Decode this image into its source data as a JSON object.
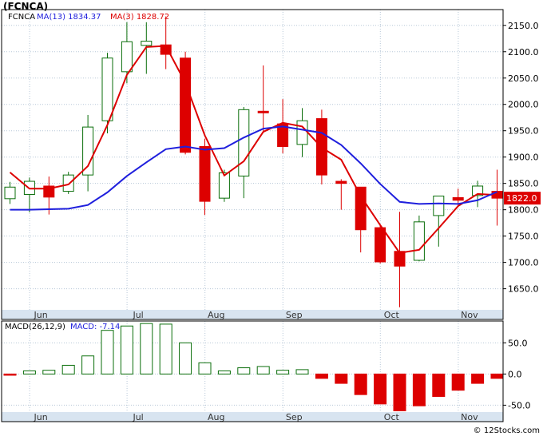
{
  "title": "(FCNCA)",
  "credit": "© 12Stocks.com",
  "colors": {
    "up": "#0a6e0a",
    "down": "#dd0000",
    "ma13": "#1f1fdd",
    "ma3": "#dd0000",
    "axis_band": "#d8e4f0",
    "grid": "#b8c8d8",
    "price_label_bg": "#dd0000"
  },
  "chart_data": [
    {
      "type": "candlestick",
      "legend": [
        {
          "label": "FCNCA",
          "color": "#000000"
        },
        {
          "label": "MA(13)",
          "value": "1834.37",
          "color": "#1f1fdd"
        },
        {
          "label": "MA(3)",
          "value": "1828.72",
          "color": "#dd0000"
        }
      ],
      "x_tick_labels": [
        "Jun",
        "Jul",
        "Aug",
        "Sep",
        "Oct",
        "Nov"
      ],
      "x_tick_positions": [
        1.0,
        6.0,
        10.0,
        14.0,
        19.0,
        23.0
      ],
      "ylim": [
        1610,
        2180
      ],
      "y_tick_labels": [
        "2150.0",
        "2100.0",
        "2050.0",
        "2000.0",
        "1950.0",
        "1900.0",
        "1850.0",
        "1800.0",
        "1750.0",
        "1700.0",
        "1650.0"
      ],
      "y_tick_values": [
        2150,
        2100,
        2050,
        2000,
        1950,
        1900,
        1850,
        1800,
        1750,
        1700,
        1650
      ],
      "last_price_label": "1822.0",
      "last_price": 1822,
      "candles": [
        {
          "o": 1821,
          "h": 1853,
          "l": 1811,
          "c": 1843
        },
        {
          "o": 1829,
          "h": 1861,
          "l": 1795,
          "c": 1854
        },
        {
          "o": 1845,
          "h": 1863,
          "l": 1791,
          "c": 1824
        },
        {
          "o": 1835,
          "h": 1872,
          "l": 1830,
          "c": 1866
        },
        {
          "o": 1866,
          "h": 1980,
          "l": 1835,
          "c": 1957
        },
        {
          "o": 1969,
          "h": 2098,
          "l": 1945,
          "c": 2088
        },
        {
          "o": 2062,
          "h": 2156,
          "l": 2040,
          "c": 2119
        },
        {
          "o": 2112,
          "h": 2156,
          "l": 2058,
          "c": 2120
        },
        {
          "o": 2113,
          "h": 2167,
          "l": 2067,
          "c": 2095
        },
        {
          "o": 2088,
          "h": 2100,
          "l": 1905,
          "c": 1909
        },
        {
          "o": 1920,
          "h": 1935,
          "l": 1790,
          "c": 1816
        },
        {
          "o": 1822,
          "h": 1876,
          "l": 1815,
          "c": 1870
        },
        {
          "o": 1864,
          "h": 1995,
          "l": 1822,
          "c": 1990
        },
        {
          "o": 1987,
          "h": 2074,
          "l": 1946,
          "c": 1984
        },
        {
          "o": 1963,
          "h": 2010,
          "l": 1907,
          "c": 1920
        },
        {
          "o": 1924,
          "h": 1993,
          "l": 1900,
          "c": 1969
        },
        {
          "o": 1973,
          "h": 1990,
          "l": 1848,
          "c": 1866
        },
        {
          "o": 1854,
          "h": 1858,
          "l": 1800,
          "c": 1850
        },
        {
          "o": 1843,
          "h": 1843,
          "l": 1719,
          "c": 1762
        },
        {
          "o": 1766,
          "h": 1772,
          "l": 1698,
          "c": 1701
        },
        {
          "o": 1721,
          "h": 1796,
          "l": 1615,
          "c": 1693
        },
        {
          "o": 1704,
          "h": 1789,
          "l": 1702,
          "c": 1777
        },
        {
          "o": 1789,
          "h": 1826,
          "l": 1730,
          "c": 1826
        },
        {
          "o": 1823,
          "h": 1840,
          "l": 1808,
          "c": 1818
        },
        {
          "o": 1827,
          "h": 1855,
          "l": 1805,
          "c": 1845
        },
        {
          "o": 1835,
          "h": 1876,
          "l": 1770,
          "c": 1822
        }
      ],
      "series": [
        {
          "name": "MA(3)",
          "values": [
            1871,
            1840,
            1840,
            1848,
            1883,
            1961,
            2056,
            2109,
            2111,
            2041,
            1941,
            1865,
            1892,
            1948,
            1965,
            1958,
            1918,
            1895,
            1826,
            1771,
            1718,
            1724,
            1765,
            1807,
            1830,
            1828
          ]
        },
        {
          "name": "MA(13)",
          "values": [
            1800,
            1800,
            1801,
            1802,
            1809,
            1833,
            1864,
            1890,
            1915,
            1920,
            1914,
            1917,
            1937,
            1954,
            1958,
            1952,
            1946,
            1923,
            1888,
            1849,
            1815,
            1811,
            1812,
            1811,
            1818,
            1834
          ]
        }
      ]
    },
    {
      "type": "bar",
      "legend": [
        {
          "label": "MACD(26,12,9)",
          "color": "#000000"
        },
        {
          "label": "MACD:",
          "value": "-7.14",
          "color": "#1f1fdd"
        }
      ],
      "x_tick_labels": [
        "Jun",
        "Jul",
        "Aug",
        "Sep",
        "Oct",
        "Nov"
      ],
      "x_tick_positions": [
        1.0,
        6.0,
        10.0,
        14.0,
        19.0,
        23.0
      ],
      "ylim": [
        -61,
        85
      ],
      "y_tick_labels": [
        "50.0",
        "0.0",
        "-50.0"
      ],
      "y_tick_values": [
        50,
        0,
        -50
      ],
      "values": [
        -2,
        5,
        6,
        14,
        29,
        70,
        77,
        81,
        80,
        50,
        18,
        5,
        10,
        12,
        6,
        7,
        -7,
        -15,
        -33,
        -48,
        -59,
        -51,
        -36,
        -26,
        -15,
        -7
      ]
    }
  ]
}
